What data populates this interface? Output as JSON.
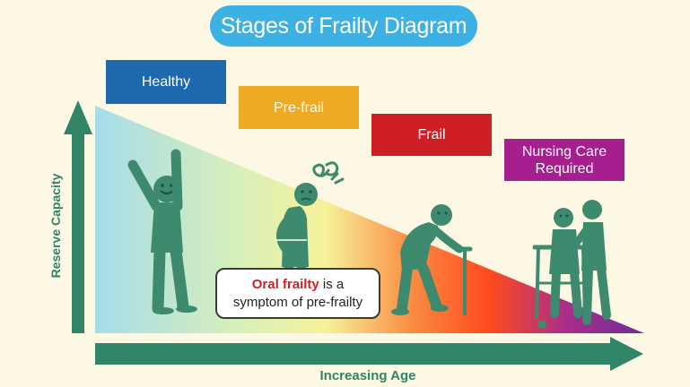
{
  "title": "Stages of Frailty Diagram",
  "stages": [
    {
      "label": "Healthy",
      "color": "#1e69ad"
    },
    {
      "label": "Pre-frail",
      "color": "#eeaa22"
    },
    {
      "label": "Frail",
      "color": "#cf1f26"
    },
    {
      "label": "Nursing Care Required",
      "color": "#a51f8f"
    }
  ],
  "axes": {
    "y_label": "Reserve Capacity",
    "x_label": "Increasing Age",
    "color": "#2f8566"
  },
  "callout": {
    "highlight": "Oral frailty",
    "rest_line1": " is a",
    "line2": "symptom of pre-frailty",
    "highlight_color": "#cf1f26"
  },
  "gradient_colors": [
    "#a6dcea",
    "#d9f0b8",
    "#f6f29a",
    "#fa8a40",
    "#fd4a1e",
    "#a92d8c",
    "#6b2e97"
  ],
  "figure_color": "#3e8a6e",
  "background": "#fdf8e4"
}
